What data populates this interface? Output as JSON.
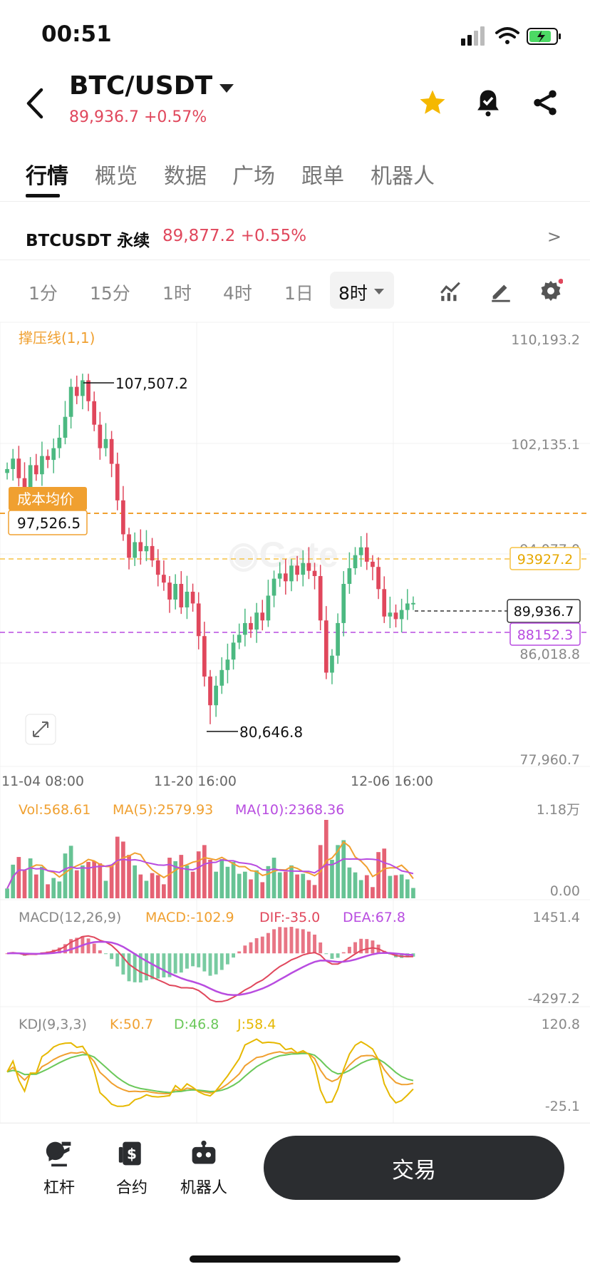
{
  "status": {
    "time": "00:51"
  },
  "header": {
    "pair": "BTC/USDT",
    "price_line": "89,936.7 +0.57%"
  },
  "icons": {
    "back": "back-arrow-icon",
    "star": "star-icon",
    "bell": "alarm-bell-icon",
    "share": "share-icon"
  },
  "tabs": [
    "行情",
    "概览",
    "数据",
    "广场",
    "跟单",
    "机器人"
  ],
  "perpetual": {
    "name": "BTCUSDT 永续",
    "price": "89,877.2 +0.55%"
  },
  "timeframes": [
    "1分",
    "15分",
    "1时",
    "4时",
    "1日"
  ],
  "selected_timeframe": "8时",
  "colors": {
    "up": "#4cb981",
    "down": "#e0475c",
    "accent": "#f0a030",
    "resistance": "#f5c242",
    "support": "#b84ce0"
  },
  "main_chart": {
    "indicator_label": "撑压线(1,1)",
    "price_axis": [
      "110,193.2",
      "102,135.1",
      "94,077.0",
      "86,018.8",
      "77,960.7"
    ],
    "high_label": "107,507.2",
    "low_label": "80,646.8",
    "cost_label": "成本均价",
    "cost_value": "97,526.5",
    "resistance_value": "93927.2",
    "current_value": "89,936.7",
    "support_value": "88152.3",
    "x_labels": [
      "11-04 08:00",
      "11-20 16:00",
      "12-06 16:00"
    ]
  },
  "volume": {
    "vol": "Vol:568.61",
    "ma5": "MA(5):2579.93",
    "ma10": "MA(10):2368.36",
    "axis_top": "1.18万",
    "axis_bottom": "0.00"
  },
  "macd": {
    "label": "MACD(12,26,9)",
    "macd": "MACD:-102.9",
    "dif": "DIF:-35.0",
    "dea": "DEA:67.8",
    "axis_top": "1451.4",
    "axis_bottom": "-4297.2"
  },
  "kdj": {
    "label": "KDJ(9,3,3)",
    "k": "K:50.7",
    "d": "D:46.8",
    "j": "J:58.4",
    "axis_top": "120.8",
    "axis_bottom": "-25.1"
  },
  "bottom_nav": {
    "leverage": "杠杆",
    "contract": "合约",
    "bot": "机器人",
    "trade": "交易"
  },
  "chart_data": {
    "type": "candlestick",
    "x_labels": [
      "11-04 08:00",
      "11-20 16:00",
      "12-06 16:00"
    ],
    "ylim": [
      77960.7,
      110193.2
    ],
    "close": [
      100200,
      101000,
      99500,
      98800,
      100500,
      99800,
      101200,
      100900,
      101800,
      102600,
      104200,
      106500,
      105800,
      107000,
      105400,
      103600,
      101800,
      102500,
      100600,
      97800,
      95200,
      93400,
      94600,
      93900,
      94300,
      93200,
      92100,
      91500,
      90200,
      91400,
      89600,
      90800,
      89900,
      87400,
      84300,
      82100,
      83600,
      84800,
      85600,
      86900,
      87500,
      88400,
      87900,
      89200,
      88600,
      90500,
      91800,
      92200,
      91600,
      92800,
      92100,
      93000,
      92400,
      92000,
      88600,
      84600,
      85900,
      88400,
      91400,
      92600,
      93600,
      94200,
      93100,
      92700,
      91000,
      88900,
      89200,
      88700,
      89400,
      89900,
      89937
    ],
    "resistance": 93927.2,
    "support": 88152.3,
    "current": 89936.7,
    "cost_average": 97526.5,
    "high": 107507.2,
    "low": 80646.8
  }
}
